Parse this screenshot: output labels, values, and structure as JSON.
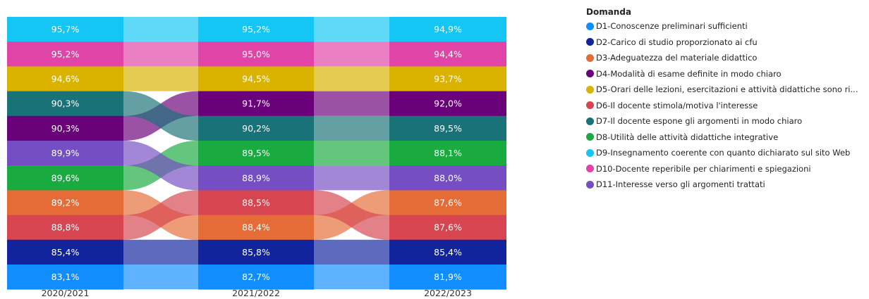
{
  "chart_data": {
    "type": "ribbon",
    "title": "",
    "categories": [
      "2020/2021",
      "2021/2022",
      "2022/2023"
    ],
    "legend_title": "Domanda",
    "legend_position": "right",
    "series": [
      {
        "key": "D1",
        "name": "D1-Conoscenze preliminari sufficienti",
        "color": "#118DFF",
        "values": [
          83.1,
          82.7,
          81.9
        ],
        "labels": [
          "83,1%",
          "82,7%",
          "81,9%"
        ]
      },
      {
        "key": "D2",
        "name": "D2-Carico di studio proporzionato ai cfu",
        "color": "#12239E",
        "values": [
          85.4,
          85.8,
          85.4
        ],
        "labels": [
          "85,4%",
          "85,8%",
          "85,4%"
        ]
      },
      {
        "key": "D3",
        "name": "D3-Adeguatezza del materiale didattico",
        "color": "#E66C37",
        "values": [
          89.2,
          88.4,
          87.6
        ],
        "labels": [
          "89,2%",
          "88,4%",
          "87,6%"
        ]
      },
      {
        "key": "D4",
        "name": "D4-Modalità di esame definite in modo chiaro",
        "color": "#6B007B",
        "values": [
          90.3,
          91.7,
          92.0
        ],
        "labels": [
          "90,3%",
          "91,7%",
          "92,0%"
        ]
      },
      {
        "key": "D5",
        "name": "D5-Orari delle lezioni, esercitazioni e attività didattiche sono ri...",
        "color": "#D9B300",
        "values": [
          94.6,
          94.5,
          93.7
        ],
        "labels": [
          "94,6%",
          "94,5%",
          "93,7%"
        ]
      },
      {
        "key": "D6",
        "name": "D6-Il docente stimola/motiva l'interesse",
        "color": "#D64550",
        "values": [
          88.8,
          88.5,
          87.6
        ],
        "labels": [
          "88,8%",
          "88,5%",
          "87,6%"
        ]
      },
      {
        "key": "D7",
        "name": "D7-Il docente espone gli argomenti in modo chiaro",
        "color": "#197278",
        "values": [
          90.3,
          90.2,
          89.5
        ],
        "labels": [
          "90,3%",
          "90,2%",
          "89,5%"
        ]
      },
      {
        "key": "D8",
        "name": "D8-Utilità delle attività didattiche integrative",
        "color": "#1AAB40",
        "values": [
          89.6,
          89.5,
          88.1
        ],
        "labels": [
          "89,6%",
          "89,5%",
          "88,1%"
        ]
      },
      {
        "key": "D9",
        "name": "D9-Insegnamento coerente con quanto dichiarato sul sito Web",
        "color": "#15C6F4",
        "values": [
          95.7,
          95.2,
          94.9
        ],
        "labels": [
          "95,7%",
          "95,2%",
          "94,9%"
        ]
      },
      {
        "key": "D10",
        "name": "D10-Docente reperibile per chiarimenti e spiegazioni",
        "color": "#E044A7",
        "values": [
          95.2,
          95.0,
          94.4
        ],
        "labels": [
          "95,2%",
          "95,0%",
          "94,4%"
        ]
      },
      {
        "key": "D11",
        "name": "D11-Interesse verso gli argomenti trattati",
        "color": "#744EC2",
        "values": [
          89.9,
          88.9,
          88.0
        ],
        "labels": [
          "89,9%",
          "88,9%",
          "88,0%"
        ]
      }
    ],
    "stack_order": [
      [
        "D9",
        "D10",
        "D5",
        "D7",
        "D4",
        "D11",
        "D8",
        "D3",
        "D6",
        "D2",
        "D1"
      ],
      [
        "D9",
        "D10",
        "D5",
        "D4",
        "D7",
        "D8",
        "D11",
        "D6",
        "D3",
        "D2",
        "D1"
      ],
      [
        "D9",
        "D10",
        "D5",
        "D4",
        "D7",
        "D8",
        "D11",
        "D3",
        "D6",
        "D2",
        "D1"
      ]
    ]
  }
}
